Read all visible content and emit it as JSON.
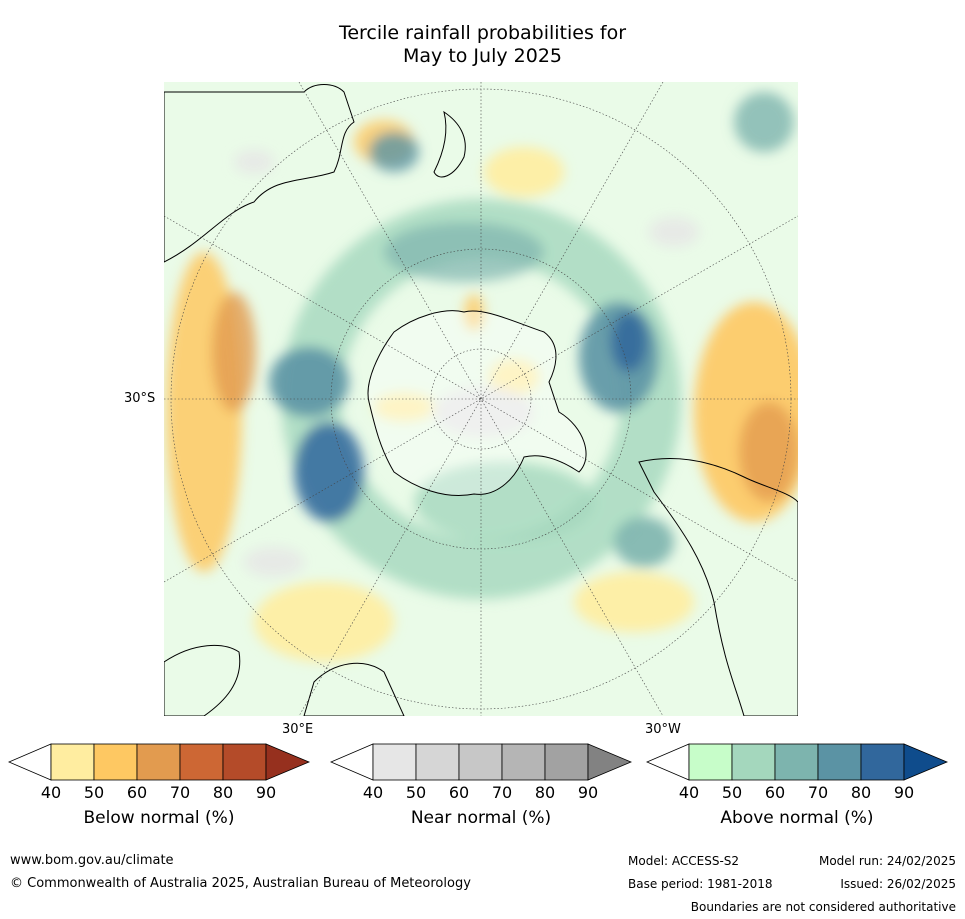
{
  "title": {
    "line1": "Tercile rainfall probabilities for",
    "line2": "May to July 2025"
  },
  "map": {
    "projection": "south polar stereographic",
    "labels": {
      "lat30s": "30°S",
      "lon30e": "30°E",
      "lon30w": "30°W"
    }
  },
  "colorbars": [
    {
      "id": "below",
      "title": "Below normal (%)",
      "ticks": [
        "40",
        "50",
        "60",
        "70",
        "80",
        "90"
      ],
      "colors": [
        "#ffffff",
        "#ffeda0",
        "#fec862",
        "#e29b4f",
        "#cd6734",
        "#b44b29",
        "#96301e"
      ]
    },
    {
      "id": "near",
      "title": "Near normal (%)",
      "ticks": [
        "40",
        "50",
        "60",
        "70",
        "80",
        "90"
      ],
      "colors": [
        "#ffffff",
        "#e6e6e6",
        "#d6d6d6",
        "#c7c7c7",
        "#b5b5b5",
        "#a2a2a2",
        "#828282"
      ]
    },
    {
      "id": "above",
      "title": "Above normal (%)",
      "ticks": [
        "40",
        "50",
        "60",
        "70",
        "80",
        "90"
      ],
      "colors": [
        "#ffffff",
        "#c7fdc9",
        "#a4d7bd",
        "#7db4ae",
        "#5b93a4",
        "#31679c",
        "#0f4c8c"
      ]
    }
  ],
  "footer": {
    "url": "www.bom.gov.au/climate",
    "copyright": "© Commonwealth of Australia 2025, Australian Bureau of Meteorology",
    "model": "Model: ACCESS-S2",
    "base_period": "Base period: 1981-2018",
    "model_run": "Model run: 24/02/2025",
    "issued": "Issued: 26/02/2025",
    "disclaimer": "Boundaries are not considered authoritative"
  }
}
